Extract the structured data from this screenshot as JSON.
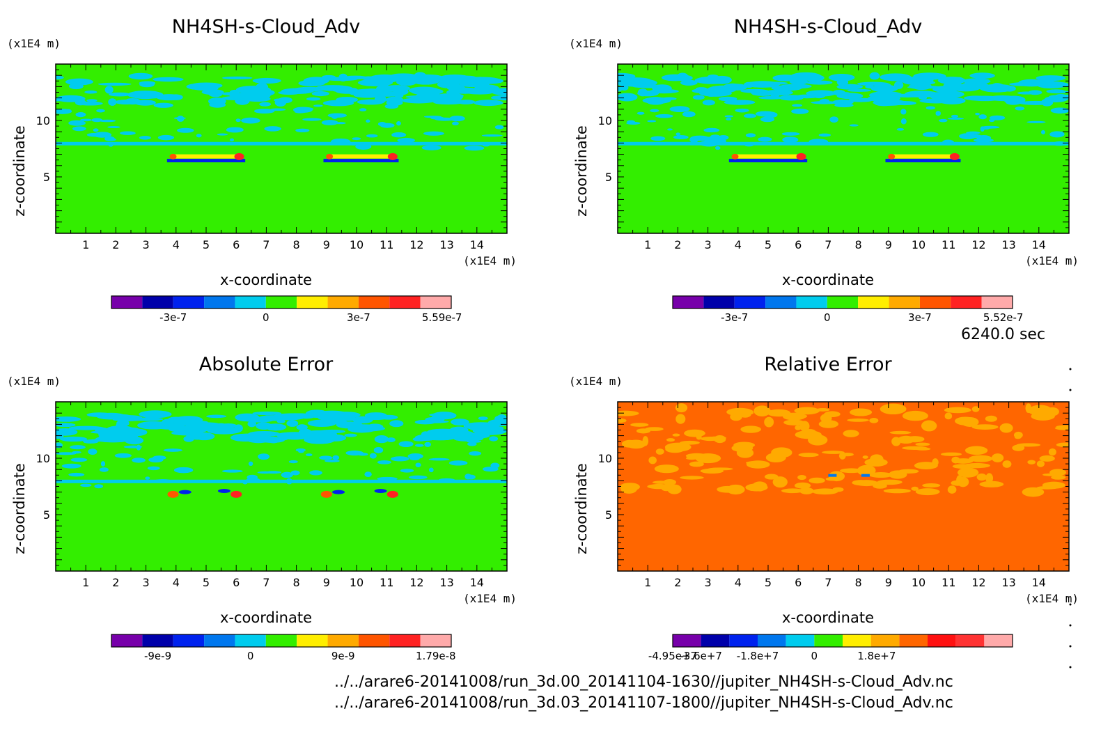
{
  "time_label": "6240.0 sec",
  "footer": {
    "file1": "../../arare6-20141008/run_3d.00_20141104-1630//jupiter_NH4SH-s-Cloud_Adv.nc",
    "file2": "../../arare6-20141008/run_3d.03_20141107-1800//jupiter_NH4SH-s-Cloud_Adv.nc"
  },
  "chart_data": [
    {
      "type": "heatmap",
      "title": "NH4SH-s-Cloud_Adv",
      "xlabel": "x-coordinate",
      "ylabel": "z-coordinate",
      "x_unit": "(x1E4 m)",
      "y_unit": "(x1E4 m)",
      "xlim": [
        0,
        15
      ],
      "ylim": [
        0,
        15
      ],
      "x_ticks": [
        "1",
        "2",
        "3",
        "4",
        "5",
        "6",
        "7",
        "8",
        "9",
        "10",
        "11",
        "12",
        "13",
        "14"
      ],
      "y_ticks": [
        "5",
        "10"
      ],
      "background": "#33ee00",
      "colorbar": {
        "colors": [
          "#7700aa",
          "#0000aa",
          "#0022ee",
          "#0077ee",
          "#00ccee",
          "#33ee00",
          "#ffee00",
          "#ffaa00",
          "#ff5500",
          "#ff2222",
          "#ffaaaa"
        ],
        "labels": [
          "-3e-7",
          "0",
          "3e-7",
          "5.59e-7"
        ],
        "label_positions": [
          2,
          5,
          8,
          10.7
        ]
      }
    },
    {
      "type": "heatmap",
      "title": "NH4SH-s-Cloud_Adv",
      "xlabel": "x-coordinate",
      "ylabel": "z-coordinate",
      "x_unit": "(x1E4 m)",
      "y_unit": "(x1E4 m)",
      "xlim": [
        0,
        15
      ],
      "ylim": [
        0,
        15
      ],
      "x_ticks": [
        "1",
        "2",
        "3",
        "4",
        "5",
        "6",
        "7",
        "8",
        "9",
        "10",
        "11",
        "12",
        "13",
        "14"
      ],
      "y_ticks": [
        "5",
        "10"
      ],
      "background": "#33ee00",
      "colorbar": {
        "colors": [
          "#7700aa",
          "#0000aa",
          "#0022ee",
          "#0077ee",
          "#00ccee",
          "#33ee00",
          "#ffee00",
          "#ffaa00",
          "#ff5500",
          "#ff2222",
          "#ffaaaa"
        ],
        "labels": [
          "-3e-7",
          "0",
          "3e-7",
          "5.52e-7"
        ],
        "label_positions": [
          2,
          5,
          8,
          10.7
        ]
      }
    },
    {
      "type": "heatmap",
      "title": "Absolute Error",
      "xlabel": "x-coordinate",
      "ylabel": "z-coordinate",
      "x_unit": "(x1E4 m)",
      "y_unit": "(x1E4 m)",
      "xlim": [
        0,
        15
      ],
      "ylim": [
        0,
        15
      ],
      "x_ticks": [
        "1",
        "2",
        "3",
        "4",
        "5",
        "6",
        "7",
        "8",
        "9",
        "10",
        "11",
        "12",
        "13",
        "14"
      ],
      "y_ticks": [
        "5",
        "10"
      ],
      "background": "#33ee00",
      "colorbar": {
        "colors": [
          "#7700aa",
          "#0000aa",
          "#0022ee",
          "#0077ee",
          "#00ccee",
          "#33ee00",
          "#ffee00",
          "#ffaa00",
          "#ff5500",
          "#ff2222",
          "#ffaaaa"
        ],
        "labels": [
          "-9e-9",
          "0",
          "9e-9",
          "1.79e-8"
        ],
        "label_positions": [
          1.5,
          4.5,
          7.5,
          10.5
        ]
      }
    },
    {
      "type": "heatmap",
      "title": "Relative Error",
      "xlabel": "x-coordinate",
      "ylabel": "z-coordinate",
      "x_unit": "(x1E4 m)",
      "y_unit": "(x1E4 m)",
      "xlim": [
        0,
        15
      ],
      "ylim": [
        0,
        15
      ],
      "x_ticks": [
        "1",
        "2",
        "3",
        "4",
        "5",
        "6",
        "7",
        "8",
        "9",
        "10",
        "11",
        "12",
        "13",
        "14"
      ],
      "y_ticks": [
        "5",
        "10"
      ],
      "background": "#ff6600",
      "colorbar": {
        "colors": [
          "#7700aa",
          "#0000aa",
          "#0022ee",
          "#0077ee",
          "#00ccee",
          "#33ee00",
          "#ffee00",
          "#ffaa00",
          "#ff6600",
          "#ff1111",
          "#ff3333",
          "#ffaaaa"
        ],
        "labels": [
          "-4.95e+7",
          "-3.6e+7",
          "-1.8e+7",
          "0",
          "1.8e+7"
        ],
        "label_positions": [
          0,
          1,
          3,
          5,
          7.2
        ]
      }
    }
  ]
}
